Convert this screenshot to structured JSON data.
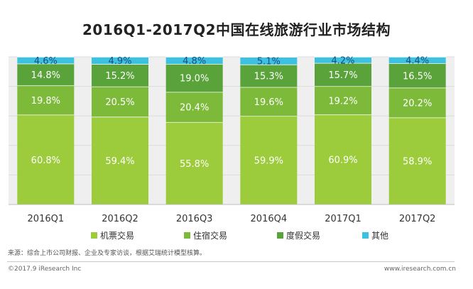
{
  "chart_data": {
    "type": "bar",
    "stacked": true,
    "percent": true,
    "title": "2016Q1-2017Q2中国在线旅游行业市场结构",
    "categories": [
      "2016Q1",
      "2016Q2",
      "2016Q3",
      "2016Q4",
      "2017Q1",
      "2017Q2"
    ],
    "series": [
      {
        "name": "机票交易",
        "color": "#9ccc3b",
        "values": [
          60.8,
          59.4,
          55.8,
          59.9,
          60.9,
          58.9
        ]
      },
      {
        "name": "住宿交易",
        "color": "#7dba3a",
        "values": [
          19.8,
          20.5,
          20.4,
          19.6,
          19.2,
          20.2
        ]
      },
      {
        "name": "度假交易",
        "color": "#5aa33b",
        "values": [
          14.8,
          15.2,
          19.0,
          15.3,
          15.7,
          16.5
        ]
      },
      {
        "name": "其他",
        "color": "#3cc2e0",
        "values": [
          4.6,
          4.9,
          4.8,
          5.1,
          4.2,
          4.4
        ]
      }
    ],
    "value_labels": [
      [
        "60.8%",
        "59.4%",
        "55.8%",
        "59.9%",
        "60.9%",
        "58.9%"
      ],
      [
        "19.8%",
        "20.5%",
        "20.4%",
        "19.6%",
        "19.2%",
        "20.2%"
      ],
      [
        "14.8%",
        "15.2%",
        "19.0%",
        "15.3%",
        "15.7%",
        "16.5%"
      ],
      [
        "4.6%",
        "4.9%",
        "4.8%",
        "5.1%",
        "4.2%",
        "4.4%"
      ]
    ],
    "ylim": [
      0,
      100
    ],
    "legend_position": "bottom",
    "grid": true,
    "background_color": "#efefef"
  },
  "source_text": "来源：综合上市公司财报、企业及专家访谈，根据艾瑞统计模型核算。",
  "copyright": "©2017.9 iResearch Inc",
  "website": "www.iresearch.com.cn"
}
